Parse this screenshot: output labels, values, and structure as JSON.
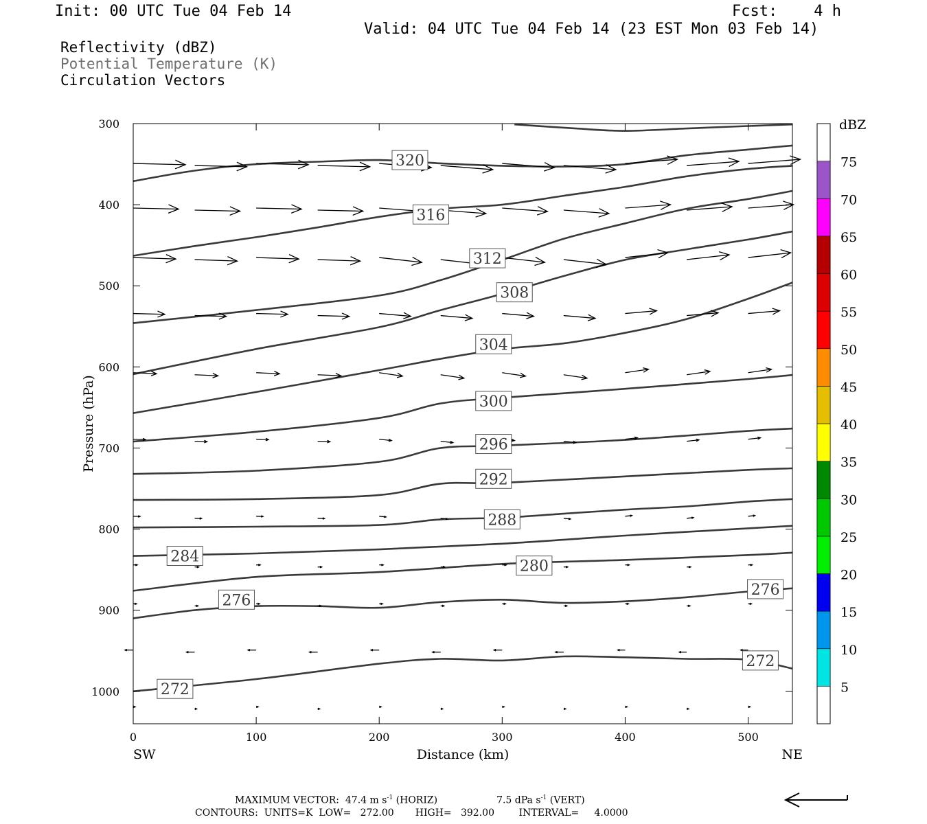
{
  "header": {
    "init": "Init: 00 UTC Tue 04 Feb 14",
    "fcst_label": "Fcst:",
    "fcst_value": "4 h",
    "valid": "Valid: 04 UTC Tue 04 Feb 14 (23 EST Mon 03 Feb 14)"
  },
  "fields": [
    {
      "label": "Reflectivity (dBZ)",
      "color": "#000000"
    },
    {
      "label": "Potential Temperature (K)",
      "color": "#6e6e6e"
    },
    {
      "label": "Circulation Vectors",
      "color": "#000000"
    }
  ],
  "chart_data": {
    "type": "cross-section",
    "xlabel": "Distance (km)",
    "ylabel": "Pressure (hPa)",
    "x_ticks": [
      0,
      100,
      200,
      300,
      400,
      500
    ],
    "y_ticks": [
      300,
      400,
      500,
      600,
      700,
      800,
      900,
      1000
    ],
    "xlim": [
      0,
      536
    ],
    "ylim": [
      1040,
      300
    ],
    "y_scale": "linear (inverted)",
    "left_end_label": "SW",
    "right_end_label": "NE",
    "contour_field": "Potential Temperature (K)",
    "contours": [
      {
        "value": 272,
        "points": [
          [
            0,
            1000
          ],
          [
            100,
            985
          ],
          [
            200,
            966
          ],
          [
            250,
            960
          ],
          [
            300,
            962
          ],
          [
            350,
            957
          ],
          [
            400,
            958
          ],
          [
            450,
            960
          ],
          [
            500,
            961
          ],
          [
            536,
            972
          ]
        ],
        "labels": [
          [
            34,
            997
          ],
          [
            510,
            962
          ]
        ]
      },
      {
        "value": 276,
        "points": [
          [
            0,
            910
          ],
          [
            50,
            900
          ],
          [
            100,
            895
          ],
          [
            150,
            895
          ],
          [
            200,
            897
          ],
          [
            250,
            890
          ],
          [
            300,
            887
          ],
          [
            350,
            891
          ],
          [
            400,
            889
          ],
          [
            450,
            884
          ],
          [
            500,
            877
          ],
          [
            536,
            873
          ]
        ],
        "labels": [
          [
            84,
            887
          ],
          [
            514,
            874
          ]
        ]
      },
      {
        "value": 280,
        "points": [
          [
            0,
            876
          ],
          [
            100,
            859
          ],
          [
            200,
            853
          ],
          [
            300,
            843
          ],
          [
            400,
            838
          ],
          [
            500,
            832
          ],
          [
            536,
            829
          ]
        ],
        "labels": [
          [
            326,
            845
          ]
        ]
      },
      {
        "value": 284,
        "points": [
          [
            0,
            833
          ],
          [
            100,
            830
          ],
          [
            200,
            825
          ],
          [
            300,
            818
          ],
          [
            400,
            808
          ],
          [
            500,
            799
          ],
          [
            536,
            796
          ]
        ],
        "labels": [
          [
            42,
            833
          ]
        ]
      },
      {
        "value": 288,
        "points": [
          [
            0,
            798
          ],
          [
            100,
            797
          ],
          [
            200,
            795
          ],
          [
            250,
            788
          ],
          [
            300,
            786
          ],
          [
            350,
            781
          ],
          [
            400,
            776
          ],
          [
            450,
            772
          ],
          [
            500,
            766
          ],
          [
            536,
            763
          ]
        ],
        "labels": [
          [
            300,
            788
          ]
        ]
      },
      {
        "value": 292,
        "points": [
          [
            0,
            764
          ],
          [
            100,
            763
          ],
          [
            200,
            758
          ],
          [
            250,
            744
          ],
          [
            300,
            743
          ],
          [
            400,
            735
          ],
          [
            500,
            727
          ],
          [
            536,
            725
          ]
        ],
        "labels": [
          [
            293,
            738
          ]
        ]
      },
      {
        "value": 296,
        "points": [
          [
            0,
            732
          ],
          [
            100,
            728
          ],
          [
            200,
            717
          ],
          [
            250,
            700
          ],
          [
            300,
            697
          ],
          [
            400,
            690
          ],
          [
            500,
            679
          ],
          [
            536,
            676
          ]
        ],
        "labels": [
          [
            293,
            695
          ]
        ]
      },
      {
        "value": 300,
        "points": [
          [
            0,
            692
          ],
          [
            100,
            680
          ],
          [
            200,
            663
          ],
          [
            250,
            645
          ],
          [
            300,
            638
          ],
          [
            400,
            627
          ],
          [
            500,
            615
          ],
          [
            536,
            610
          ]
        ],
        "labels": [
          [
            293,
            642
          ]
        ]
      },
      {
        "value": 304,
        "points": [
          [
            0,
            657
          ],
          [
            100,
            631
          ],
          [
            200,
            604
          ],
          [
            250,
            590
          ],
          [
            300,
            578
          ],
          [
            350,
            571
          ],
          [
            400,
            558
          ],
          [
            450,
            541
          ],
          [
            500,
            516
          ],
          [
            536,
            496
          ]
        ],
        "labels": [
          [
            293,
            572
          ]
        ]
      },
      {
        "value": 308,
        "points": [
          [
            0,
            609
          ],
          [
            100,
            578
          ],
          [
            200,
            551
          ],
          [
            250,
            530
          ],
          [
            300,
            510
          ],
          [
            350,
            488
          ],
          [
            400,
            468
          ],
          [
            450,
            455
          ],
          [
            500,
            443
          ],
          [
            536,
            433
          ]
        ],
        "labels": [
          [
            310,
            508
          ]
        ]
      },
      {
        "value": 312,
        "points": [
          [
            0,
            546
          ],
          [
            100,
            530
          ],
          [
            200,
            512
          ],
          [
            250,
            493
          ],
          [
            300,
            468
          ],
          [
            350,
            442
          ],
          [
            400,
            423
          ],
          [
            450,
            405
          ],
          [
            500,
            393
          ],
          [
            536,
            383
          ]
        ],
        "labels": [
          [
            288,
            466
          ]
        ]
      },
      {
        "value": 316,
        "points": [
          [
            0,
            463
          ],
          [
            50,
            451
          ],
          [
            100,
            440
          ],
          [
            150,
            428
          ],
          [
            200,
            415
          ],
          [
            250,
            405
          ],
          [
            300,
            400
          ],
          [
            350,
            389
          ],
          [
            400,
            378
          ],
          [
            450,
            365
          ],
          [
            500,
            356
          ],
          [
            536,
            352
          ]
        ],
        "labels": [
          [
            242,
            412
          ]
        ]
      },
      {
        "value": 320,
        "points": [
          [
            0,
            371
          ],
          [
            50,
            358
          ],
          [
            100,
            350
          ],
          [
            150,
            347
          ],
          [
            200,
            345
          ],
          [
            250,
            349
          ],
          [
            300,
            352
          ],
          [
            350,
            353
          ],
          [
            400,
            350
          ],
          [
            450,
            339
          ],
          [
            500,
            332
          ],
          [
            536,
            327
          ]
        ],
        "labels": [
          [
            225,
            345
          ]
        ]
      },
      {
        "value": 324,
        "points": [
          [
            310,
            301
          ],
          [
            360,
            306
          ],
          [
            400,
            309
          ],
          [
            450,
            306
          ],
          [
            500,
            303
          ],
          [
            536,
            301
          ]
        ],
        "labels": []
      }
    ],
    "colorbar": {
      "title": "dBZ",
      "levels": [
        5,
        10,
        15,
        20,
        25,
        30,
        35,
        40,
        45,
        50,
        55,
        60,
        65,
        70,
        75
      ],
      "colors": [
        "#00e4e4",
        "#0096ec",
        "#0000f0",
        "#00ee00",
        "#00c800",
        "#008800",
        "#ffff00",
        "#e6be00",
        "#ff8c00",
        "#ff0000",
        "#dc0000",
        "#b40000",
        "#ff00ff",
        "#9b55c9"
      ]
    },
    "wind_vector_columns_km": [
      0,
      50,
      100,
      150,
      200,
      250,
      300,
      350,
      400,
      450,
      500
    ],
    "wind_vector_levels_hpa": [
      350,
      405,
      466,
      535,
      608,
      690,
      785,
      845,
      893,
      950,
      1020
    ],
    "reference_vector": "left-pointing arrow"
  },
  "footer": {
    "line1_max": "MAXIMUM VECTOR:  47.4 m s",
    "line1_exp1": "-1",
    "line1_horiz": " (HORIZ)",
    "line1_vert": "7.5 dPa s",
    "line1_exp2": "-1",
    "line1_vert_tail": " (VERT)",
    "line2": "CONTOURS:  UNITS=K  LOW=   272.00       HIGH=   392.00        INTERVAL=     4.0000"
  }
}
